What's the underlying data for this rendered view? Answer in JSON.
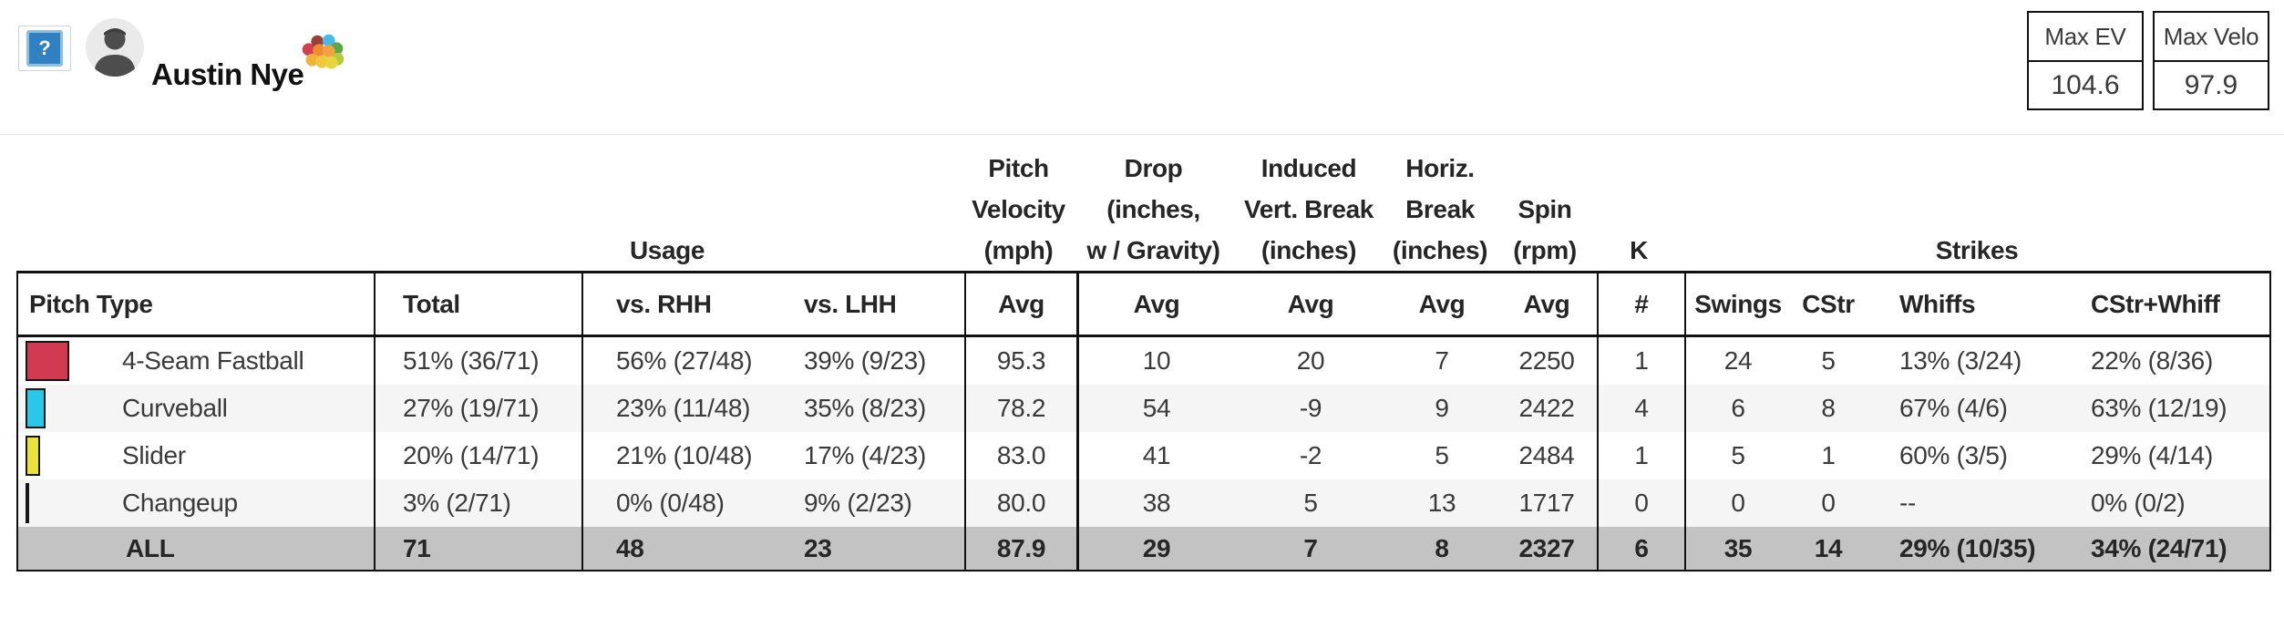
{
  "topbar": {
    "player_name": "Austin Nye",
    "help_glyph": "?",
    "badge_colors": [
      "#9a4136",
      "#45b9e8",
      "#57a847",
      "#d2404e",
      "#ef8c33",
      "#f0a23c",
      "#b6c93f",
      "#f2b13a",
      "#f0c93a",
      "#e9d43c"
    ]
  },
  "max_stats": [
    {
      "label": "Max EV",
      "value": "104.6"
    },
    {
      "label": "Max Velo",
      "value": "97.9"
    }
  ],
  "table": {
    "group_headers": {
      "usage": "Usage",
      "velocity": "Pitch\nVelocity\n(mph)",
      "drop": "Drop\n(inches,\nw / Gravity)",
      "induced_vert_break": "Induced\nVert. Break\n(inches)",
      "horiz_break": "Horiz.\nBreak\n(inches)",
      "spin": "Spin\n(rpm)",
      "k": "K",
      "strikes": "Strikes"
    },
    "columns": [
      "Pitch Type",
      "Total",
      "vs. RHH",
      "vs. LHH",
      "Avg",
      "Avg",
      "Avg",
      "Avg",
      "Avg",
      "#",
      "Swings",
      "CStr",
      "Whiffs",
      "CStr+Whiff"
    ],
    "rows": [
      {
        "label": "4-Seam Fastball",
        "color": "#d23a52",
        "swatch_w": 48,
        "total": "51% (36/71)",
        "vs_rhh": "56% (27/48)",
        "vs_lhh": "39% (9/23)",
        "velo_avg": "95.3",
        "drop_avg": "10",
        "ivb_avg": "20",
        "hb_avg": "7",
        "spin_avg": "2250",
        "k": "1",
        "swings": "24",
        "cstr": "5",
        "whiffs": "13% (3/24)",
        "cstr_whiff": "22% (8/36)"
      },
      {
        "label": "Curveball",
        "color": "#2bc7e8",
        "swatch_w": 22,
        "total": "27% (19/71)",
        "vs_rhh": "23% (11/48)",
        "vs_lhh": "35% (8/23)",
        "velo_avg": "78.2",
        "drop_avg": "54",
        "ivb_avg": "-9",
        "hb_avg": "9",
        "spin_avg": "2422",
        "k": "4",
        "swings": "6",
        "cstr": "8",
        "whiffs": "67% (4/6)",
        "cstr_whiff": "63% (12/19)"
      },
      {
        "label": "Slider",
        "color": "#e8e23a",
        "swatch_w": 16,
        "total": "20% (14/71)",
        "vs_rhh": "21% (10/48)",
        "vs_lhh": "17% (4/23)",
        "velo_avg": "83.0",
        "drop_avg": "41",
        "ivb_avg": "-2",
        "hb_avg": "5",
        "spin_avg": "2484",
        "k": "1",
        "swings": "5",
        "cstr": "1",
        "whiffs": "60% (3/5)",
        "cstr_whiff": "29% (4/14)"
      },
      {
        "label": "Changeup",
        "color": "#151515",
        "swatch_w": 4,
        "total": "3% (2/71)",
        "vs_rhh": "0% (0/48)",
        "vs_lhh": "9% (2/23)",
        "velo_avg": "80.0",
        "drop_avg": "38",
        "ivb_avg": "5",
        "hb_avg": "13",
        "spin_avg": "1717",
        "k": "0",
        "swings": "0",
        "cstr": "0",
        "whiffs": "--",
        "cstr_whiff": "0% (0/2)"
      }
    ],
    "all_row": {
      "label": "ALL",
      "total": "71",
      "vs_rhh": "48",
      "vs_lhh": "23",
      "velo_avg": "87.9",
      "drop_avg": "29",
      "ivb_avg": "7",
      "hb_avg": "8",
      "spin_avg": "2327",
      "k": "6",
      "swings": "35",
      "cstr": "14",
      "whiffs": "29% (10/35)",
      "cstr_whiff": "34% (24/71)"
    }
  }
}
